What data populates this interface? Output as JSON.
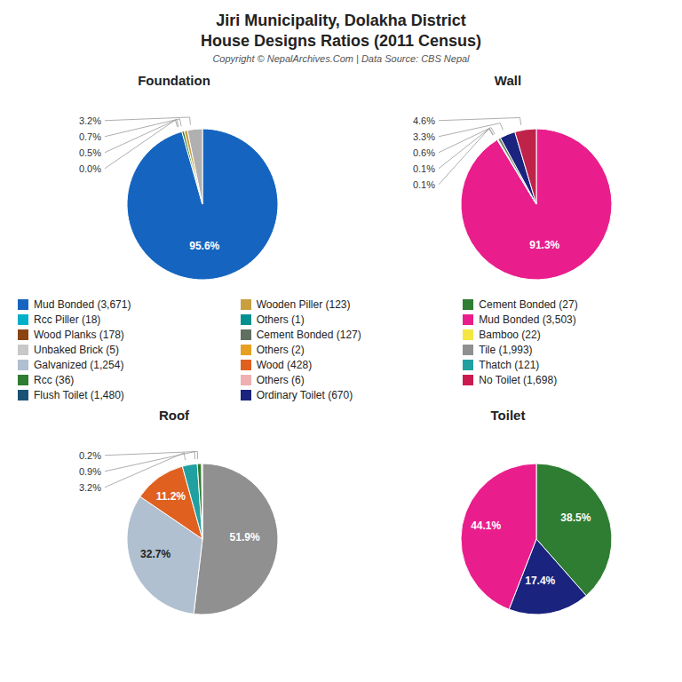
{
  "title": "Jiri Municipality, Dolakha District",
  "subtitle": "House Designs Ratios (2011 Census)",
  "annotations": [
    "Copyright © NepalArchives.Com | Data Source: CBS Nepal"
  ],
  "legend_columns": [
    [
      {
        "name": "Mud Bonded (3,671)",
        "color": "#1565c0"
      },
      {
        "name": "Rcc Piller (18)",
        "color": "#00b0c8"
      },
      {
        "name": "Wood Planks (178)",
        "color": "#8b4513"
      },
      {
        "name": "Unbaked Brick (5)",
        "color": "#c8c8c8"
      },
      {
        "name": "Galvanized (1,254)",
        "color": "#b0c0d0"
      },
      {
        "name": "Rcc (36)",
        "color": "#2e7d32"
      },
      {
        "name": "Flush Toilet (1,480)",
        "color": "#1a5276"
      }
    ],
    [
      {
        "name": "Wooden Piller (123)",
        "color": "#c8a040"
      },
      {
        "name": "Others (1)",
        "color": "#009090"
      },
      {
        "name": "Cement Bonded (127)",
        "color": "#607060"
      },
      {
        "name": "Others (2)",
        "color": "#e8a020"
      },
      {
        "name": "Wood (428)",
        "color": "#e06020"
      },
      {
        "name": "Others (6)",
        "color": "#f0b0b0"
      },
      {
        "name": "Ordinary Toilet (670)",
        "color": "#1a237e"
      }
    ],
    [
      {
        "name": "Cement Bonded (27)",
        "color": "#2e7d32"
      },
      {
        "name": "Mud Bonded (3,503)",
        "color": "#e91e8c"
      },
      {
        "name": "Bamboo (22)",
        "color": "#f5e642"
      },
      {
        "name": "Tile (1,993)",
        "color": "#909090"
      },
      {
        "name": "Thatch (121)",
        "color": "#20a0a0"
      },
      {
        "name": "No Toilet (1,698)",
        "color": "#cc1a50"
      }
    ]
  ],
  "chart_data": [
    {
      "type": "pie",
      "title": "Foundation",
      "values": [
        95.6,
        0.0,
        0.5,
        0.7,
        3.2
      ],
      "value_labels": [
        "95.6%",
        "0.0%",
        "0.5%",
        "0.7%",
        "3.2%"
      ],
      "colors": [
        "#1565c0",
        "#00b0c8",
        "#2e7d32",
        "#c8a040",
        "#b0b0b0"
      ],
      "data_labels": true
    },
    {
      "type": "pie",
      "title": "Wall",
      "values": [
        91.3,
        0.1,
        0.1,
        0.6,
        3.3,
        4.6
      ],
      "value_labels": [
        "91.3%",
        "0.1%",
        "0.1%",
        "0.6%",
        "3.3%",
        "4.6%"
      ],
      "colors": [
        "#e91e8c",
        "#f5e642",
        "#808080",
        "#708060",
        "#1a237e",
        "#c0234a"
      ],
      "data_labels": true
    },
    {
      "type": "pie",
      "title": "Roof",
      "values": [
        51.9,
        32.7,
        11.2,
        3.2,
        0.9,
        0.2
      ],
      "value_labels": [
        "51.9%",
        "32.7%",
        "11.2%",
        "3.2%",
        "0.9%",
        "0.2%"
      ],
      "colors": [
        "#909090",
        "#b0c0d0",
        "#e06020",
        "#20a0a0",
        "#2e7d32",
        "#d0a0a0"
      ],
      "data_labels": true
    },
    {
      "type": "pie",
      "title": "Toilet",
      "values": [
        38.5,
        17.4,
        44.1
      ],
      "value_labels": [
        "38.5%",
        "17.4%",
        "44.1%"
      ],
      "colors": [
        "#2e7d32",
        "#1a237e",
        "#e91e8c"
      ],
      "data_labels": true
    }
  ]
}
